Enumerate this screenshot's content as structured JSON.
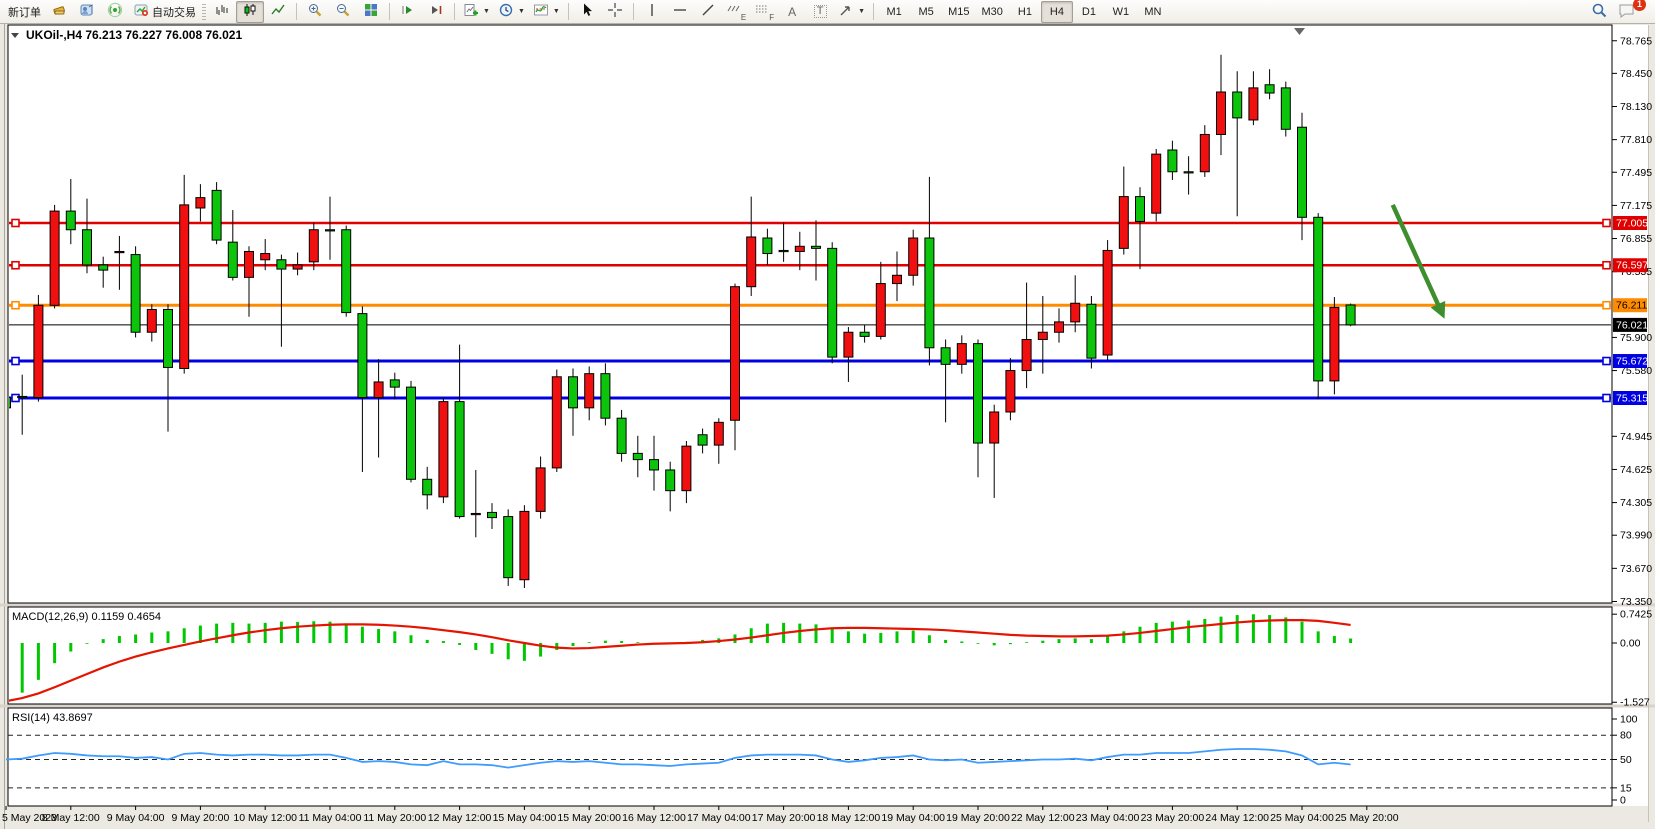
{
  "toolbar": {
    "new_order": "新订单",
    "auto_trading": "自动交易",
    "timeframes": [
      "M1",
      "M5",
      "M15",
      "M30",
      "H1",
      "H4",
      "D1",
      "W1",
      "MN"
    ],
    "active_timeframe": "H4",
    "tool_letters": {
      "elliott": "E",
      "fibonacci": "F",
      "text": "A",
      "label": "T"
    },
    "notification_badge": "1"
  },
  "chart": {
    "symbol_title": "UKOil-,H4",
    "ohlc": "76.213 76.227 76.008 76.021"
  },
  "chart_data": {
    "type": "candlestick",
    "symbol": "UKOil-",
    "timeframe": "H4",
    "up_color": "#f01010",
    "down_color": "#0cc40c",
    "x_labels": [
      "5 May 2023",
      "8 May 12:00",
      "9 May 04:00",
      "9 May 20:00",
      "10 May 12:00",
      "11 May 04:00",
      "11 May 20:00",
      "12 May 12:00",
      "15 May 04:00",
      "15 May 20:00",
      "16 May 12:00",
      "17 May 04:00",
      "17 May 20:00",
      "18 May 12:00",
      "19 May 04:00",
      "19 May 20:00",
      "22 May 12:00",
      "23 May 04:00",
      "23 May 20:00",
      "24 May 12:00",
      "25 May 04:00",
      "25 May 20:00"
    ],
    "price_axis_ticks": [
      "78.765",
      "78.450",
      "78.130",
      "77.810",
      "77.495",
      "77.175",
      "76.855",
      "76.535",
      "75.900",
      "75.580",
      "74.945",
      "74.625",
      "74.305",
      "73.990",
      "73.670",
      "73.350"
    ],
    "candles_ohlc": [
      [
        75.32,
        75.38,
        75.16,
        75.22
      ],
      [
        75.33,
        75.54,
        74.96,
        75.32
      ],
      [
        75.32,
        76.31,
        75.28,
        76.21
      ],
      [
        76.21,
        77.18,
        76.18,
        77.12
      ],
      [
        77.12,
        77.43,
        76.8,
        76.94
      ],
      [
        76.94,
        77.24,
        76.52,
        76.6
      ],
      [
        76.6,
        76.68,
        76.38,
        76.55
      ],
      [
        76.72,
        76.88,
        76.36,
        76.73
      ],
      [
        76.7,
        76.78,
        75.9,
        75.95
      ],
      [
        75.95,
        76.22,
        75.86,
        76.17
      ],
      [
        76.17,
        76.22,
        74.99,
        75.61
      ],
      [
        75.6,
        77.47,
        75.55,
        77.18
      ],
      [
        77.15,
        77.38,
        77.02,
        77.25
      ],
      [
        77.32,
        77.4,
        76.8,
        76.84
      ],
      [
        76.82,
        77.13,
        76.45,
        76.48
      ],
      [
        76.48,
        76.78,
        76.1,
        76.73
      ],
      [
        76.65,
        76.85,
        76.55,
        76.71
      ],
      [
        76.65,
        76.7,
        75.81,
        76.56
      ],
      [
        76.56,
        76.72,
        76.5,
        76.6
      ],
      [
        76.63,
        77.01,
        76.55,
        76.94
      ],
      [
        76.94,
        77.26,
        76.65,
        76.93
      ],
      [
        76.94,
        76.98,
        76.1,
        76.14
      ],
      [
        76.13,
        76.2,
        74.6,
        75.32
      ],
      [
        75.32,
        75.69,
        74.74,
        75.47
      ],
      [
        75.49,
        75.56,
        75.3,
        75.42
      ],
      [
        75.42,
        75.48,
        74.5,
        74.53
      ],
      [
        74.53,
        74.65,
        74.24,
        74.38
      ],
      [
        74.36,
        75.32,
        74.3,
        75.28
      ],
      [
        75.28,
        75.83,
        74.15,
        74.17
      ],
      [
        74.19,
        74.62,
        73.97,
        74.2
      ],
      [
        74.21,
        74.3,
        74.05,
        74.16
      ],
      [
        74.17,
        74.24,
        73.5,
        73.58
      ],
      [
        73.56,
        74.28,
        73.48,
        74.22
      ],
      [
        74.22,
        74.75,
        74.15,
        74.64
      ],
      [
        74.64,
        75.59,
        74.6,
        75.52
      ],
      [
        75.52,
        75.6,
        74.95,
        75.22
      ],
      [
        75.22,
        75.62,
        75.1,
        75.55
      ],
      [
        75.55,
        75.65,
        75.05,
        75.12
      ],
      [
        75.12,
        75.2,
        74.7,
        74.78
      ],
      [
        74.78,
        74.95,
        74.55,
        74.72
      ],
      [
        74.72,
        74.95,
        74.42,
        74.62
      ],
      [
        74.62,
        74.7,
        74.22,
        74.42
      ],
      [
        74.42,
        74.9,
        74.3,
        74.85
      ],
      [
        74.96,
        75.02,
        74.78,
        74.86
      ],
      [
        74.86,
        75.12,
        74.68,
        75.08
      ],
      [
        75.1,
        76.42,
        74.81,
        76.39
      ],
      [
        76.39,
        77.26,
        76.3,
        76.87
      ],
      [
        76.86,
        76.95,
        76.6,
        76.71
      ],
      [
        76.74,
        77.01,
        76.63,
        76.73
      ],
      [
        76.73,
        76.92,
        76.55,
        76.78
      ],
      [
        76.78,
        77.03,
        76.45,
        76.76
      ],
      [
        76.76,
        76.82,
        75.65,
        75.71
      ],
      [
        75.71,
        76.0,
        75.47,
        75.95
      ],
      [
        75.95,
        76.02,
        75.85,
        75.91
      ],
      [
        75.91,
        76.63,
        75.88,
        76.42
      ],
      [
        76.42,
        76.73,
        76.25,
        76.5
      ],
      [
        76.5,
        76.94,
        76.4,
        76.86
      ],
      [
        76.86,
        77.45,
        75.63,
        75.8
      ],
      [
        75.8,
        75.88,
        75.08,
        75.64
      ],
      [
        75.64,
        75.92,
        75.55,
        75.84
      ],
      [
        75.84,
        75.88,
        74.55,
        74.88
      ],
      [
        74.88,
        75.25,
        74.35,
        75.18
      ],
      [
        75.18,
        75.7,
        75.1,
        75.58
      ],
      [
        75.58,
        76.43,
        75.41,
        75.88
      ],
      [
        75.88,
        76.3,
        75.55,
        75.95
      ],
      [
        75.95,
        76.18,
        75.85,
        76.05
      ],
      [
        76.05,
        76.5,
        75.95,
        76.23
      ],
      [
        76.22,
        76.3,
        75.6,
        75.7
      ],
      [
        75.73,
        76.84,
        75.68,
        76.74
      ],
      [
        76.76,
        77.55,
        76.7,
        77.26
      ],
      [
        77.26,
        77.35,
        76.56,
        77.02
      ],
      [
        77.1,
        77.72,
        77.02,
        77.67
      ],
      [
        77.71,
        77.8,
        77.42,
        77.5
      ],
      [
        77.5,
        77.65,
        77.28,
        77.49
      ],
      [
        77.5,
        77.95,
        77.45,
        77.86
      ],
      [
        77.86,
        78.63,
        77.66,
        78.27
      ],
      [
        78.27,
        78.47,
        77.07,
        78.02
      ],
      [
        78.0,
        78.47,
        77.95,
        78.31
      ],
      [
        78.34,
        78.49,
        78.2,
        78.26
      ],
      [
        78.31,
        78.37,
        77.84,
        77.91
      ],
      [
        77.93,
        78.07,
        76.84,
        77.06
      ],
      [
        77.06,
        77.1,
        75.3,
        75.48
      ],
      [
        75.48,
        76.29,
        75.35,
        76.19
      ],
      [
        76.213,
        76.227,
        76.008,
        76.021
      ]
    ],
    "horizontal_lines": [
      {
        "price": 77.005,
        "label": "77.005",
        "color": "#e00000",
        "text_color": "#ffffff",
        "width": 2.4
      },
      {
        "price": 76.597,
        "label": "76.597",
        "color": "#e00000",
        "text_color": "#ffffff",
        "width": 2.4
      },
      {
        "price": 76.211,
        "label": "76.211",
        "color": "#ff8c00",
        "text_color": "#000000",
        "width": 3
      },
      {
        "price": 75.672,
        "label": "75.672",
        "color": "#0000e0",
        "text_color": "#ffffff",
        "width": 3
      },
      {
        "price": 75.315,
        "label": "75.315",
        "color": "#0000e0",
        "text_color": "#ffffff",
        "width": 3
      }
    ],
    "current_price_line": {
      "price": 76.021,
      "label": "76.021",
      "color": "#000000",
      "text_color": "#ffffff"
    },
    "trend_arrow": {
      "start_index": 85.6,
      "start_price": 77.18,
      "end_index": 88.8,
      "end_price": 76.08,
      "color": "#3e8e2e"
    },
    "macd": {
      "name": "MACD",
      "params": "12,26,9",
      "values_label": "0.1159 0.4654",
      "axis_ticks": [
        "0.7425",
        "0.00",
        "-1.527"
      ],
      "axis_tick_values": [
        0.7425,
        0,
        -1.527
      ],
      "histogram_color": "#00c800",
      "signal_color": "#e51400",
      "histogram": [
        -1.45,
        -1.28,
        -0.95,
        -0.52,
        -0.22,
        -0.02,
        0.1,
        0.18,
        0.22,
        0.27,
        0.3,
        0.38,
        0.45,
        0.5,
        0.52,
        0.5,
        0.52,
        0.55,
        0.54,
        0.56,
        0.55,
        0.5,
        0.42,
        0.36,
        0.3,
        0.2,
        0.08,
        0.05,
        -0.05,
        -0.18,
        -0.28,
        -0.42,
        -0.46,
        -0.35,
        -0.18,
        -0.08,
        0.02,
        0.06,
        0.05,
        0.02,
        0.0,
        -0.02,
        0.03,
        0.08,
        0.12,
        0.22,
        0.38,
        0.5,
        0.52,
        0.5,
        0.48,
        0.4,
        0.3,
        0.24,
        0.26,
        0.3,
        0.32,
        0.2,
        0.08,
        0.04,
        -0.02,
        -0.06,
        -0.03,
        0.02,
        0.06,
        0.1,
        0.12,
        0.1,
        0.18,
        0.3,
        0.42,
        0.52,
        0.55,
        0.58,
        0.62,
        0.68,
        0.72,
        0.74,
        0.72,
        0.66,
        0.55,
        0.3,
        0.18,
        0.116
      ],
      "signal": [
        -1.5,
        -1.42,
        -1.3,
        -1.14,
        -0.97,
        -0.8,
        -0.63,
        -0.48,
        -0.35,
        -0.24,
        -0.14,
        -0.05,
        0.04,
        0.12,
        0.2,
        0.27,
        0.33,
        0.38,
        0.42,
        0.45,
        0.47,
        0.48,
        0.48,
        0.47,
        0.45,
        0.42,
        0.38,
        0.33,
        0.28,
        0.22,
        0.15,
        0.07,
        0.0,
        -0.07,
        -0.12,
        -0.14,
        -0.13,
        -0.1,
        -0.07,
        -0.04,
        -0.02,
        -0.01,
        0.0,
        0.02,
        0.05,
        0.09,
        0.14,
        0.2,
        0.26,
        0.31,
        0.35,
        0.38,
        0.39,
        0.39,
        0.38,
        0.37,
        0.36,
        0.35,
        0.33,
        0.3,
        0.27,
        0.24,
        0.21,
        0.19,
        0.18,
        0.17,
        0.17,
        0.18,
        0.19,
        0.22,
        0.26,
        0.31,
        0.36,
        0.41,
        0.45,
        0.49,
        0.53,
        0.56,
        0.58,
        0.59,
        0.59,
        0.57,
        0.52,
        0.465
      ]
    },
    "rsi": {
      "name": "RSI",
      "params": "14",
      "value_label": "43.8697",
      "axis_ticks": [
        "100",
        "80",
        "50",
        "15",
        "0"
      ],
      "axis_tick_values": [
        100,
        80,
        50,
        15,
        0
      ],
      "levels": [
        80,
        50,
        15
      ],
      "line_color": "#3e9bff",
      "series": [
        50,
        51,
        55,
        58,
        57,
        55,
        54,
        54,
        52,
        53,
        50,
        57,
        58,
        56,
        55,
        56,
        56,
        55,
        55,
        56,
        56,
        52,
        47,
        48,
        47,
        44,
        43,
        48,
        44,
        44,
        43,
        40,
        43,
        46,
        48,
        47,
        48,
        46,
        44,
        44,
        43,
        42,
        44,
        45,
        46,
        52,
        55,
        56,
        56,
        56,
        55,
        50,
        47,
        49,
        52,
        53,
        55,
        50,
        49,
        50,
        46,
        47,
        48,
        49,
        50,
        50,
        51,
        49,
        53,
        56,
        56,
        58,
        58,
        58,
        60,
        62,
        63,
        63,
        62,
        60,
        55,
        44,
        46,
        43.87
      ]
    }
  }
}
